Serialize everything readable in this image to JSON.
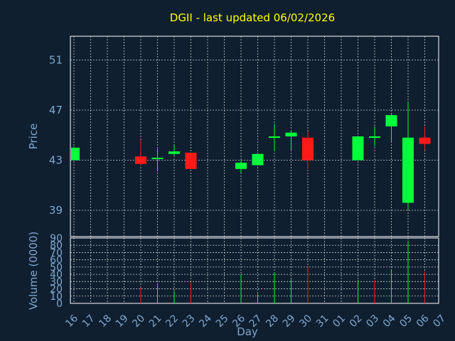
{
  "chart_data": {
    "type": "candlestick",
    "title": "DGII - last updated 06/02/2026",
    "xlabel": "Day",
    "colors": {
      "background": "#0f1f30",
      "up": "#00ff3a",
      "down": "#ff1a1a",
      "grid": "#c8c8c8",
      "axis_text": "#7fa7cf",
      "title": "#ffff00"
    },
    "days": [
      "16",
      "17",
      "18",
      "19",
      "20",
      "21",
      "22",
      "23",
      "24",
      "25",
      "26",
      "27",
      "28",
      "29",
      "30",
      "31",
      "01",
      "02",
      "03",
      "04",
      "05",
      "06",
      "07"
    ],
    "price_panel": {
      "ylabel": "Price",
      "ylim": [
        36.9,
        52.9
      ],
      "ticks": [
        39,
        43,
        47,
        51
      ],
      "tick_labels": [
        "39",
        "43",
        "47",
        "51"
      ],
      "candles": [
        {
          "day": "16",
          "open": 43.0,
          "high": 44.1,
          "low": 43.0,
          "close": 44.0
        },
        {
          "day": "20",
          "open": 43.3,
          "high": 44.6,
          "low": 42.6,
          "close": 42.7
        },
        {
          "day": "21",
          "open": 43.1,
          "high": 43.9,
          "low": 42.1,
          "close": 43.2
        },
        {
          "day": "22",
          "open": 43.5,
          "high": 44.2,
          "low": 43.4,
          "close": 43.7
        },
        {
          "day": "23",
          "open": 43.6,
          "high": 43.6,
          "low": 42.3,
          "close": 42.3
        },
        {
          "day": "26",
          "open": 42.3,
          "high": 43.0,
          "low": 42.0,
          "close": 42.8
        },
        {
          "day": "27",
          "open": 42.6,
          "high": 43.6,
          "low": 42.6,
          "close": 43.5
        },
        {
          "day": "28",
          "open": 44.8,
          "high": 45.9,
          "low": 43.8,
          "close": 44.9
        },
        {
          "day": "29",
          "open": 44.9,
          "high": 45.4,
          "low": 43.8,
          "close": 45.2
        },
        {
          "day": "30",
          "open": 44.8,
          "high": 45.3,
          "low": 42.3,
          "close": 43.0
        },
        {
          "day": "02",
          "open": 43.0,
          "high": 44.9,
          "low": 43.0,
          "close": 44.9
        },
        {
          "day": "03",
          "open": 44.9,
          "high": 45.7,
          "low": 44.1,
          "close": 44.9
        },
        {
          "day": "04",
          "open": 45.7,
          "high": 46.7,
          "low": 44.4,
          "close": 46.6
        },
        {
          "day": "05",
          "open": 39.6,
          "high": 47.7,
          "low": 39.0,
          "close": 44.8
        },
        {
          "day": "06",
          "open": 44.8,
          "high": 45.7,
          "low": 43.8,
          "close": 44.3
        }
      ]
    },
    "volume_panel": {
      "ylabel": "Volume (0000)",
      "ylim": [
        0,
        90
      ],
      "ticks": [
        0,
        10,
        20,
        30,
        40,
        50,
        60,
        70,
        80,
        90
      ],
      "tick_labels": [
        "0",
        "10",
        "20",
        "30",
        "40",
        "50",
        "60",
        "70",
        "80",
        "90"
      ],
      "bars": [
        {
          "day": "20",
          "value": 22,
          "direction": "down"
        },
        {
          "day": "21",
          "value": 25,
          "direction": "up"
        },
        {
          "day": "22",
          "value": 17,
          "direction": "up"
        },
        {
          "day": "23",
          "value": 29,
          "direction": "down"
        },
        {
          "day": "26",
          "value": 40,
          "direction": "up"
        },
        {
          "day": "27",
          "value": 13,
          "direction": "up"
        },
        {
          "day": "28",
          "value": 42,
          "direction": "up"
        },
        {
          "day": "29",
          "value": 33,
          "direction": "up"
        },
        {
          "day": "30",
          "value": 50,
          "direction": "down"
        },
        {
          "day": "02",
          "value": 32,
          "direction": "up"
        },
        {
          "day": "03",
          "value": 32,
          "direction": "down"
        },
        {
          "day": "04",
          "value": 46,
          "direction": "up"
        },
        {
          "day": "05",
          "value": 86,
          "direction": "up"
        },
        {
          "day": "06",
          "value": 44,
          "direction": "down"
        }
      ]
    }
  }
}
